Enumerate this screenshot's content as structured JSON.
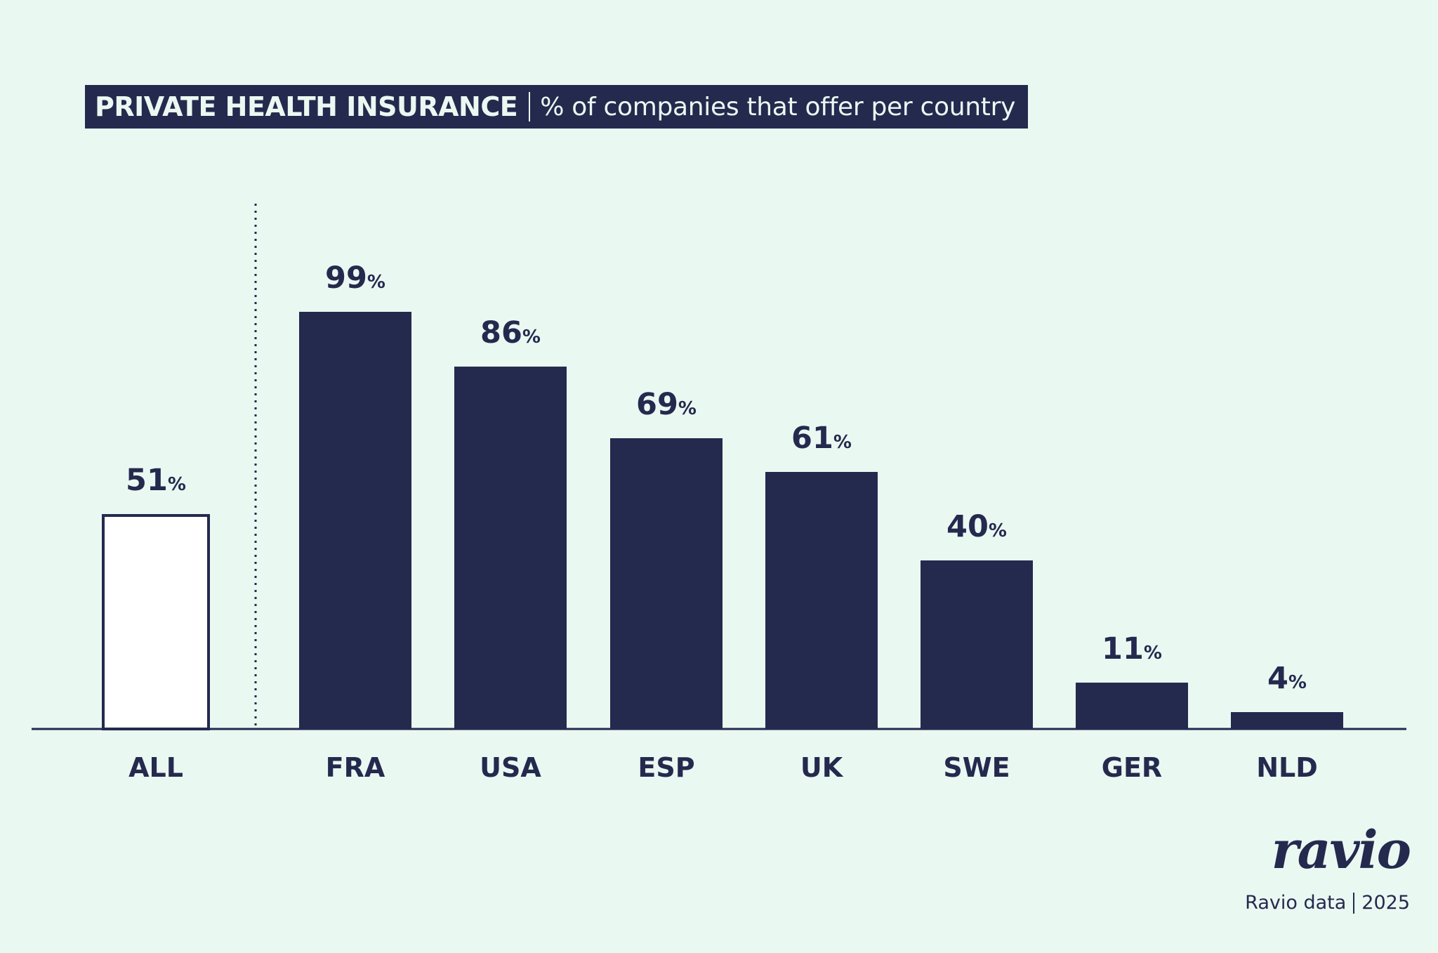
{
  "title": {
    "main": "PRIVATE HEALTH INSURANCE",
    "subtitle": "% of companies that offer per country"
  },
  "chart_data": {
    "type": "bar",
    "categories": [
      "ALL",
      "FRA",
      "USA",
      "ESP",
      "UK",
      "SWE",
      "GER",
      "NLD"
    ],
    "values": [
      51,
      99,
      86,
      69,
      61,
      40,
      11,
      4
    ],
    "value_suffix": "%",
    "title": "PRIVATE HEALTH INSURANCE",
    "subtitle": "% of companies that offer per country",
    "xlabel": "",
    "ylabel": "",
    "grid": false,
    "highlighted_category": "ALL",
    "colors": {
      "bar": "#242A4E",
      "highlight_fill": "#FFFFFF",
      "highlight_stroke": "#242A4E"
    }
  },
  "branding": {
    "logo": "ravio",
    "source": "Ravio data",
    "year": "2025"
  },
  "colors": {
    "background": "#EAF8F2",
    "ink": "#242A4E"
  }
}
